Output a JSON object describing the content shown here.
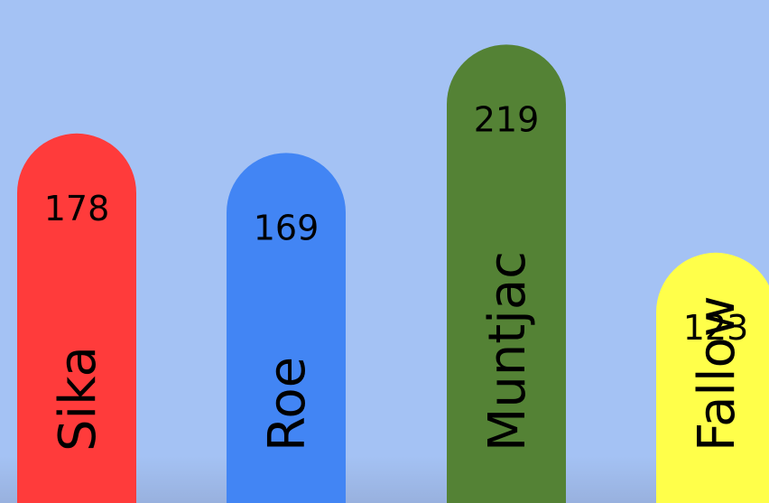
{
  "background_color": "#a4c2f4",
  "shadow_color": "#8a9cc4",
  "chart_data": {
    "type": "bar",
    "title": "",
    "xlabel": "",
    "ylabel": "",
    "categories": [
      "Sika",
      "Roe",
      "Muntjac",
      "Fallow"
    ],
    "values": [
      178,
      169,
      219,
      123
    ],
    "value_labels": [
      "178",
      "169",
      "219",
      "123"
    ],
    "colors": [
      "#ff3b3b",
      "#4285f4",
      "#548235",
      "#ffff4a"
    ],
    "label_color": "#000000",
    "grid": false,
    "legend": "none",
    "bar_style": "rounded-top",
    "category_labels_orientation": "vertical"
  }
}
